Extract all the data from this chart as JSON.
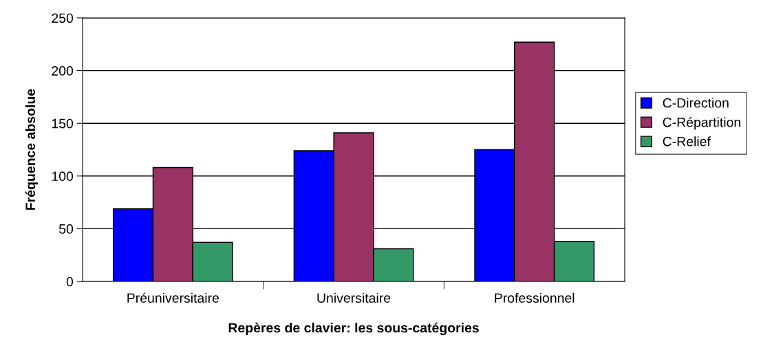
{
  "chart_data": {
    "type": "bar",
    "xlabel": "Repères de clavier: les sous-catégories",
    "ylabel": "Fréquence absolue",
    "categories": [
      "Préuniversitaire",
      "Universitaire",
      "Professionnel"
    ],
    "series": [
      {
        "name": "C-Direction",
        "color": "#0000ff",
        "values": [
          69,
          124,
          125
        ]
      },
      {
        "name": "C-Répartition",
        "color": "#993366",
        "values": [
          108,
          141,
          227
        ]
      },
      {
        "name": "C-Relief",
        "color": "#339966",
        "values": [
          37,
          31,
          38
        ]
      }
    ],
    "ylim": [
      0,
      250
    ],
    "yticks": [
      0,
      50,
      100,
      150,
      200,
      250
    ],
    "grid": "y",
    "legend": "right"
  }
}
